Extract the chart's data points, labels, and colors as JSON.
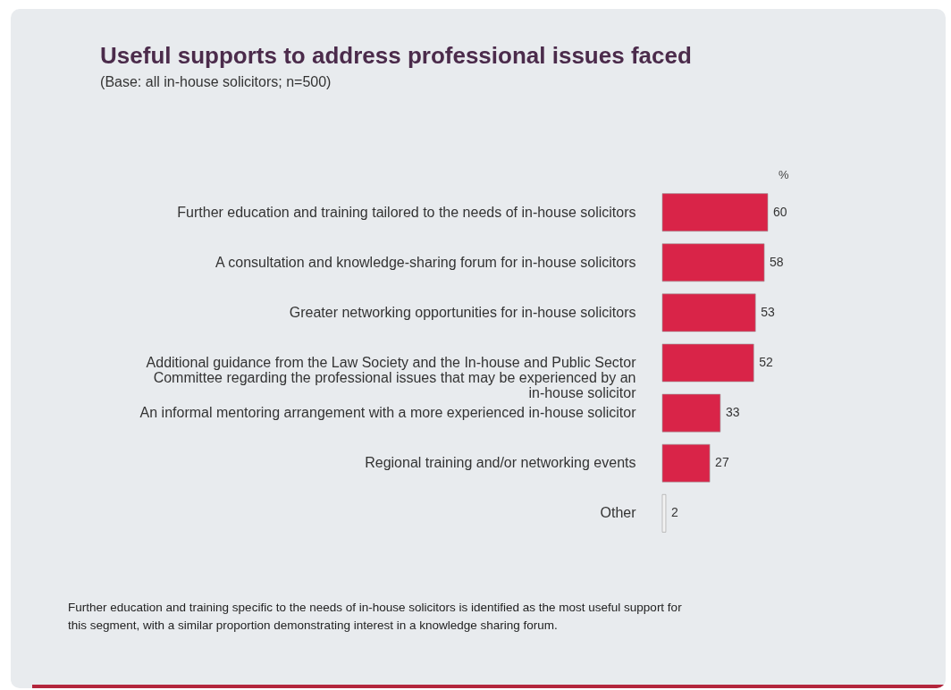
{
  "chart_data": {
    "type": "bar",
    "orientation": "horizontal",
    "title": "Useful supports to address professional issues faced",
    "subtitle": "(Base: all in-house solicitors; n=500)",
    "xlabel": "%",
    "categories": [
      "Further education and training tailored to the needs of in-house solicitors",
      "A consultation and knowledge-sharing forum for in-house solicitors",
      "Greater networking opportunities for in-house solicitors",
      "Additional guidance from the Law Society and the In-house and Public Sector Committee regarding the professional issues that may be experienced by an in-house solicitor",
      "An informal mentoring arrangement with a more experienced in-house solicitor",
      "Regional training and/or networking events",
      "Other"
    ],
    "values": [
      60,
      58,
      53,
      52,
      33,
      27,
      2
    ],
    "colors": [
      "#d92448",
      "#d92448",
      "#d92448",
      "#d92448",
      "#d92448",
      "#d92448",
      "#f2f2f2"
    ],
    "data_labels": true,
    "grid": false,
    "annotations": [
      "Further education and training specific to the needs of in-house solicitors is identified as the most useful support for this segment, with a similar proportion demonstrating interest in a knowledge sharing forum."
    ]
  }
}
